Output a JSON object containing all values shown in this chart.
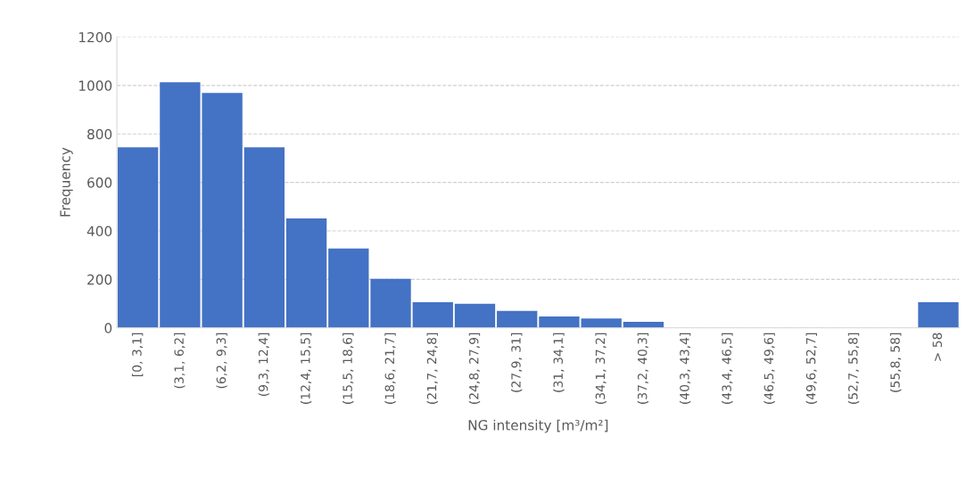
{
  "chart_data": {
    "type": "bar",
    "xlabel": "NG intensity [m³/m²]",
    "ylabel": "Frequency",
    "categories": [
      "[0, 3,1]",
      "(3,1, 6,2]",
      "(6,2, 9,3]",
      "(9,3, 12,4]",
      "(12,4, 15,5]",
      "(15,5, 18,6]",
      "(18,6, 21,7]",
      "(21,7, 24,8]",
      "(24,8, 27,9]",
      "(27,9, 31]",
      "(31, 34,1]",
      "(34,1, 37,2]",
      "(37,2, 40,3]",
      "(40,3, 43,4]",
      "(43,4, 46,5]",
      "(46,5, 49,6]",
      "(49,6, 52,7]",
      "(52,7, 55,8]",
      "(55,8, 58]",
      "> 58"
    ],
    "values": [
      745,
      1013,
      969,
      745,
      451,
      327,
      202,
      106,
      99,
      70,
      47,
      39,
      25,
      0,
      0,
      0,
      0,
      0,
      0,
      106
    ],
    "color": "#4472c4",
    "ylim": [
      0,
      1200
    ],
    "yticks": [
      0,
      200,
      400,
      600,
      800,
      1000,
      1200
    ],
    "grid": "y"
  }
}
